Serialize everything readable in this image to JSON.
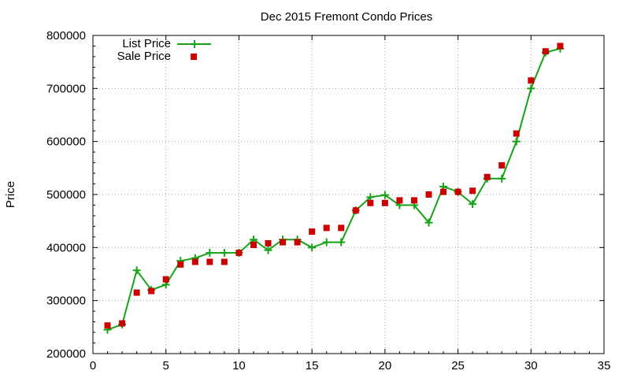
{
  "chart_data": {
    "type": "line",
    "title": "Dec 2015 Fremont Condo Prices",
    "xlabel": "",
    "ylabel": "Price",
    "xlim": [
      0,
      35
    ],
    "ylim": [
      200000,
      800000
    ],
    "xticks": [
      0,
      5,
      10,
      15,
      20,
      25,
      30,
      35
    ],
    "yticks": [
      200000,
      300000,
      400000,
      500000,
      600000,
      700000,
      800000
    ],
    "grid": true,
    "legend_position": "top-left",
    "series": [
      {
        "name": "List Price",
        "style": "line+cross",
        "color": "#16a316",
        "x": [
          1,
          2,
          3,
          4,
          5,
          6,
          7,
          8,
          9,
          10,
          11,
          12,
          13,
          14,
          15,
          16,
          17,
          18,
          19,
          20,
          21,
          22,
          23,
          24,
          25,
          26,
          27,
          28,
          29,
          30,
          31,
          32
        ],
        "values": [
          245000,
          255000,
          357000,
          320000,
          330000,
          375000,
          380000,
          390000,
          390000,
          390000,
          415000,
          395000,
          415000,
          415000,
          400000,
          410000,
          410000,
          470000,
          495000,
          499000,
          480000,
          480000,
          447000,
          515000,
          505000,
          482000,
          530000,
          530000,
          600000,
          700000,
          768000,
          775000
        ]
      },
      {
        "name": "Sale Price",
        "style": "square",
        "color": "#cc0000",
        "x": [
          1,
          2,
          3,
          4,
          5,
          6,
          7,
          8,
          9,
          10,
          11,
          12,
          13,
          14,
          15,
          16,
          17,
          18,
          19,
          20,
          21,
          22,
          23,
          24,
          25,
          26,
          27,
          28,
          29,
          30,
          31,
          32
        ],
        "values": [
          253000,
          257000,
          315000,
          318000,
          340000,
          368000,
          373000,
          373000,
          373000,
          390000,
          405000,
          408000,
          410000,
          410000,
          430000,
          437000,
          437000,
          470000,
          484000,
          484000,
          489000,
          489000,
          500000,
          505000,
          505000,
          507000,
          533000,
          555000,
          615000,
          715000,
          770000,
          780000
        ]
      }
    ]
  }
}
